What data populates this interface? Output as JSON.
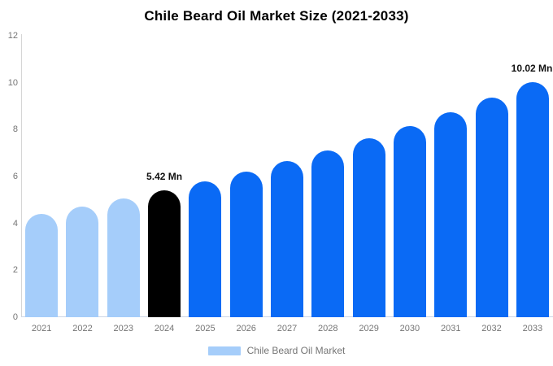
{
  "title": "Chile Beard Oil Market Size (2021-2033)",
  "chart_data": {
    "type": "bar",
    "title": "Chile Beard Oil Market Size (2021-2033)",
    "categories": [
      "2021",
      "2022",
      "2023",
      "2024",
      "2025",
      "2026",
      "2027",
      "2028",
      "2029",
      "2030",
      "2031",
      "2032",
      "2033"
    ],
    "values": [
      4.42,
      4.73,
      5.06,
      5.42,
      5.8,
      6.21,
      6.65,
      7.12,
      7.62,
      8.16,
      8.74,
      9.36,
      10.02
    ],
    "bar_colors": [
      "#a5cdfa",
      "#a5cdfa",
      "#a5cdfa",
      "#000000",
      "#0a6af5",
      "#0a6af5",
      "#0a6af5",
      "#0a6af5",
      "#0a6af5",
      "#0a6af5",
      "#0a6af5",
      "#0a6af5",
      "#0a6af5"
    ],
    "xlabel": "",
    "ylabel": "",
    "ylim": [
      0,
      12
    ],
    "yticks": [
      0,
      2,
      4,
      6,
      8,
      10,
      12
    ],
    "grid": false,
    "annotations": [
      {
        "category": "2024",
        "text": "5.42 Mn"
      },
      {
        "category": "2033",
        "text": "10.02 Mn"
      }
    ],
    "legend": {
      "position": "bottom-center",
      "label": "Chile Beard Oil Market",
      "swatch_color": "#a5cdfa"
    },
    "colors": {
      "historical_bar": "#a5cdfa",
      "base_year_bar": "#000000",
      "forecast_bar": "#0a6af5",
      "axis_text": "#757575",
      "value_label_text": "#111111"
    }
  }
}
